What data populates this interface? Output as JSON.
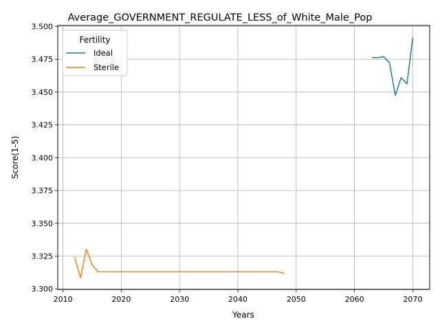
{
  "chart_data": {
    "type": "line",
    "title": "Average_GOVERNMENT_REGULATE_LESS_of_White_Male_Pop",
    "xlabel": "Years",
    "ylabel": "Score(1-5)",
    "xlim": [
      2009.1,
      2072.9
    ],
    "ylim": [
      3.2996,
      3.5008
    ],
    "xticks": [
      2010,
      2020,
      2030,
      2040,
      2050,
      2060,
      2070
    ],
    "yticks": [
      3.3,
      3.325,
      3.35,
      3.375,
      3.4,
      3.425,
      3.45,
      3.475,
      3.5
    ],
    "xtick_labels": [
      "2010",
      "2020",
      "2030",
      "2040",
      "2050",
      "2060",
      "2070"
    ],
    "ytick_labels": [
      "3.300",
      "3.325",
      "3.350",
      "3.375",
      "3.400",
      "3.425",
      "3.450",
      "3.475",
      "3.500"
    ],
    "grid": true,
    "legend": {
      "title": "Fertility",
      "placement": "top-left"
    },
    "series": [
      {
        "name": "Ideal",
        "color": "#1f77b4",
        "x": [
          2063,
          2064,
          2065,
          2066,
          2067,
          2068,
          2069,
          2070
        ],
        "y": [
          3.4763,
          3.4763,
          3.477,
          3.4724,
          3.4476,
          3.461,
          3.4563,
          3.4915
        ]
      },
      {
        "name": "Sterile",
        "color": "#ff7f0e",
        "x": [
          2012,
          2013,
          2014,
          2015,
          2016,
          2017,
          2018,
          2019,
          2020,
          2021,
          2022,
          2023,
          2024,
          2025,
          2026,
          2027,
          2028,
          2029,
          2030,
          2031,
          2032,
          2033,
          2034,
          2035,
          2036,
          2037,
          2038,
          2039,
          2040,
          2041,
          2042,
          2043,
          2044,
          2045,
          2046,
          2047,
          2048
        ],
        "y": [
          3.3242,
          3.3085,
          3.3302,
          3.3184,
          3.313,
          3.313,
          3.313,
          3.313,
          3.313,
          3.313,
          3.313,
          3.313,
          3.313,
          3.313,
          3.313,
          3.313,
          3.313,
          3.313,
          3.313,
          3.313,
          3.313,
          3.313,
          3.313,
          3.313,
          3.313,
          3.313,
          3.313,
          3.313,
          3.313,
          3.313,
          3.313,
          3.313,
          3.313,
          3.313,
          3.313,
          3.313,
          3.3118
        ]
      }
    ]
  }
}
